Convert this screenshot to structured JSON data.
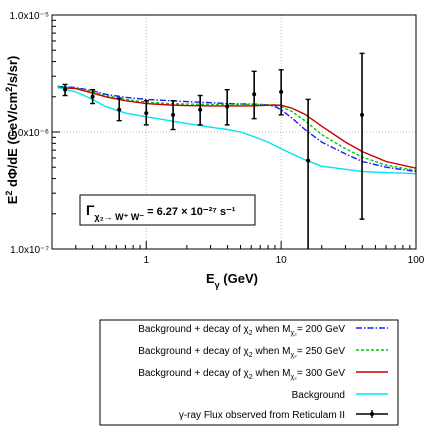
{
  "chart_data": {
    "type": "line",
    "title": "",
    "xlabel": "E_γ (GeV)",
    "ylabel": "E² dΦ/dE (GeV/cm²/s/sr)",
    "xscale": "log",
    "yscale": "log",
    "xlim": [
      0.2,
      100
    ],
    "ylim": [
      1e-07,
      1e-05
    ],
    "x_tick_labels": [
      "1",
      "10",
      "100"
    ],
    "x_tick_values": [
      1,
      10,
      100
    ],
    "y_tick_labels": [
      "1.0x10⁻⁷",
      "1.0x10⁻⁶",
      "1.0x10⁻⁵"
    ],
    "y_tick_values": [
      1e-07,
      1e-06,
      1e-05
    ],
    "grid": true,
    "annotation": {
      "gamma": "Γ",
      "subscript": "χ₂→ W⁺ W⁻",
      "value": " = 6.27 × 10⁻²⁷ s⁻¹"
    },
    "legend_position": "below-plot",
    "series": [
      {
        "label_main": "Background + decay of χ",
        "label_sub": "2",
        "label_when": " when M",
        "label_msub": "χ₂",
        "label_tail": "= 200 GeV",
        "color": "#1a1aff",
        "dash": "6,2,1.5,2",
        "x": [
          0.22,
          0.3,
          0.4,
          0.5,
          0.7,
          1.0,
          1.5,
          2.0,
          3.0,
          4.0,
          5.0,
          6.0,
          7.0,
          8.0,
          9.0,
          10.0,
          12.0,
          15.0,
          20.0,
          30.0,
          40.0,
          60.0,
          100.0
        ],
        "y": [
          2.45e-06,
          2.4e-06,
          2.25e-06,
          2.1e-06,
          1.98e-06,
          1.9e-06,
          1.85e-06,
          1.82e-06,
          1.78e-06,
          1.75e-06,
          1.74e-06,
          1.73e-06,
          1.72e-06,
          1.7e-06,
          1.65e-06,
          1.55e-06,
          1.32e-06,
          1.05e-06,
          8.2e-07,
          6.5e-07,
          5.6e-07,
          5e-07,
          4.6e-07
        ]
      },
      {
        "label_main": "Background + decay of χ",
        "label_sub": "2",
        "label_when": " when M",
        "label_msub": "χ₂",
        "label_tail": "= 250 GeV",
        "color": "#00cc00",
        "dash": "3,2",
        "x": [
          0.22,
          0.3,
          0.4,
          0.5,
          0.7,
          1.0,
          1.5,
          2.0,
          3.0,
          4.0,
          5.0,
          6.0,
          7.0,
          8.0,
          9.0,
          10.0,
          12.0,
          15.0,
          20.0,
          30.0,
          40.0,
          60.0,
          100.0
        ],
        "y": [
          2.45e-06,
          2.38e-06,
          2.2e-06,
          2.05e-06,
          1.9e-06,
          1.8e-06,
          1.75e-06,
          1.73e-06,
          1.72e-06,
          1.72e-06,
          1.72e-06,
          1.72e-06,
          1.72e-06,
          1.71e-06,
          1.7e-06,
          1.65e-06,
          1.5e-06,
          1.25e-06,
          9.5e-07,
          7.2e-07,
          6.1e-07,
          5.2e-07,
          4.7e-07
        ]
      },
      {
        "label_main": "Background + decay of χ",
        "label_sub": "2",
        "label_when": " when M",
        "label_msub": "χ₂",
        "label_tail": "= 300 GeV",
        "color": "#cc0000",
        "dash": "",
        "x": [
          0.22,
          0.3,
          0.4,
          0.5,
          0.7,
          1.0,
          1.5,
          2.0,
          3.0,
          4.0,
          5.0,
          6.0,
          7.0,
          8.0,
          9.0,
          10.0,
          12.0,
          15.0,
          20.0,
          30.0,
          40.0,
          60.0,
          100.0
        ],
        "y": [
          2.4e-06,
          2.35e-06,
          2.15e-06,
          2e-06,
          1.85e-06,
          1.75e-06,
          1.7e-06,
          1.68e-06,
          1.67e-06,
          1.67e-06,
          1.67e-06,
          1.67e-06,
          1.68e-06,
          1.69e-06,
          1.7e-06,
          1.69e-06,
          1.6e-06,
          1.42e-06,
          1.12e-06,
          8.2e-07,
          6.8e-07,
          5.6e-07,
          4.9e-07
        ]
      },
      {
        "label_main": "Background",
        "color": "#00e5ee",
        "dash": "",
        "x": [
          0.22,
          0.3,
          0.4,
          0.5,
          0.7,
          1.0,
          1.5,
          2.0,
          3.0,
          4.0,
          5.0,
          6.0,
          8.0,
          10.0,
          15.0,
          20.0,
          30.0,
          40.0,
          60.0,
          100.0
        ],
        "y": [
          2.4e-06,
          2.2e-06,
          1.9e-06,
          1.65e-06,
          1.45e-06,
          1.35e-06,
          1.25e-06,
          1.18e-06,
          1.1e-06,
          1.05e-06,
          1e-06,
          9.3e-07,
          8.2e-07,
          7.2e-07,
          5.8e-07,
          5.1e-07,
          4.8e-07,
          4.6e-07,
          4.5e-07,
          4.4e-07
        ]
      }
    ],
    "observed": {
      "label_main": "γ-ray Flux observed from Reticulam II",
      "color": "#000000",
      "points": [
        {
          "x": 0.25,
          "y": 2.3e-06,
          "y_low": 2.05e-06,
          "y_high": 2.55e-06
        },
        {
          "x": 0.4,
          "y": 2e-06,
          "y_low": 1.75e-06,
          "y_high": 2.3e-06
        },
        {
          "x": 0.63,
          "y": 1.55e-06,
          "y_low": 1.25e-06,
          "y_high": 1.95e-06
        },
        {
          "x": 1.0,
          "y": 1.45e-06,
          "y_low": 1.15e-06,
          "y_high": 1.85e-06
        },
        {
          "x": 1.58,
          "y": 1.4e-06,
          "y_low": 1.05e-06,
          "y_high": 1.85e-06
        },
        {
          "x": 2.51,
          "y": 1.55e-06,
          "y_low": 1.15e-06,
          "y_high": 2.05e-06
        },
        {
          "x": 3.98,
          "y": 1.65e-06,
          "y_low": 1.15e-06,
          "y_high": 2.3e-06
        },
        {
          "x": 6.31,
          "y": 2.1e-06,
          "y_low": 1.3e-06,
          "y_high": 3.3e-06
        },
        {
          "x": 10.0,
          "y": 2.2e-06,
          "y_low": 1.4e-06,
          "y_high": 3.4e-06
        },
        {
          "x": 15.85,
          "y": 5.7e-07,
          "y_low": 1e-07,
          "y_high": 1.9e-06
        },
        {
          "x": 39.8,
          "y": 1.4e-06,
          "y_low": 1.8e-07,
          "y_high": 4.7e-06
        }
      ]
    }
  }
}
